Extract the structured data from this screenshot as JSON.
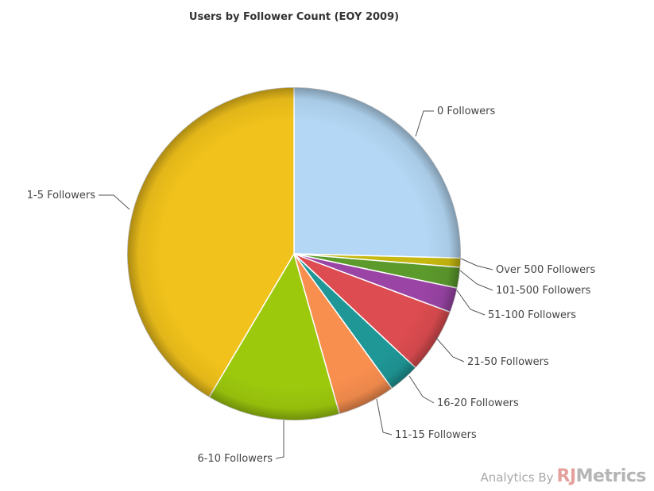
{
  "chart_data": {
    "type": "pie",
    "title": "Users by Follower Count (EOY 2009)",
    "slices": [
      {
        "label": "0 Followers",
        "value": 25.4,
        "color": "#b3d7f4"
      },
      {
        "label": "Over 500 Followers",
        "value": 0.9,
        "color": "#c6b80f"
      },
      {
        "label": "101-500 Followers",
        "value": 2.0,
        "color": "#5c9a2c"
      },
      {
        "label": "51-100 Followers",
        "value": 2.4,
        "color": "#9a44a6"
      },
      {
        "label": "21-50 Followers",
        "value": 6.3,
        "color": "#dd4c50"
      },
      {
        "label": "16-20 Followers",
        "value": 3.0,
        "color": "#1f9797"
      },
      {
        "label": "11-15 Followers",
        "value": 5.6,
        "color": "#f98f4f"
      },
      {
        "label": "6-10 Followers",
        "value": 12.9,
        "color": "#9dc90d"
      },
      {
        "label": "1-5 Followers",
        "value": 41.5,
        "color": "#f1c21b"
      }
    ]
  },
  "credit": {
    "text": "Analytics By",
    "logo_prefix": "RJ",
    "logo_suffix": "Metrics"
  }
}
